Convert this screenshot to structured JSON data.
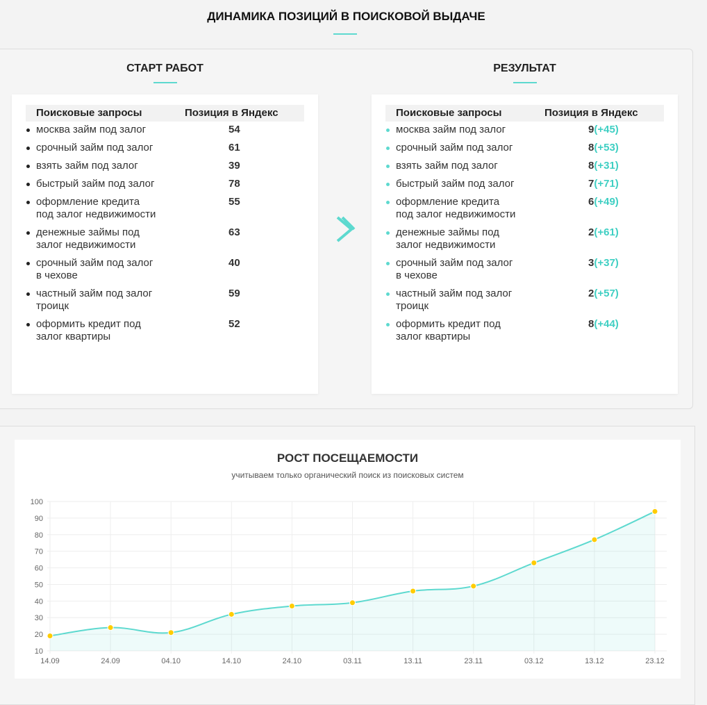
{
  "title": "ДИНАМИКА ПОЗИЦИЙ В ПОИСКОВОЙ ВЫДАЧЕ",
  "start": {
    "title": "СТАРТ РАБОТ",
    "col_query": "Поисковые запросы",
    "col_pos": "Позиция в Яндекс",
    "rows": [
      {
        "q": "москва займ под залог",
        "p": "54"
      },
      {
        "q": "срочный займ под залог",
        "p": "61"
      },
      {
        "q": "взять займ под залог",
        "p": "39"
      },
      {
        "q": "быстрый займ под залог",
        "p": "78"
      },
      {
        "q": "оформление кредита под залог недвижимости",
        "p": "55"
      },
      {
        "q": "денежные займы под залог недвижимости",
        "p": "63"
      },
      {
        "q": "срочный займ под залог в чехове",
        "p": "40"
      },
      {
        "q": "частный займ под залог троицк",
        "p": "59"
      },
      {
        "q": "оформить кредит под залог квартиры",
        "p": "52"
      }
    ]
  },
  "result": {
    "title": "РЕЗУЛЬТАТ",
    "col_query": "Поисковые запросы",
    "col_pos": "Позиция в Яндекс",
    "rows": [
      {
        "q": "москва займ под залог",
        "p": "9",
        "d": "(+45)"
      },
      {
        "q": "срочный займ под залог",
        "p": "8",
        "d": "(+53)"
      },
      {
        "q": "взять займ под залог",
        "p": "8",
        "d": "(+31)"
      },
      {
        "q": "быстрый займ под залог",
        "p": "7",
        "d": "(+71)"
      },
      {
        "q": "оформление кредита под залог недвижимости",
        "p": "6",
        "d": "(+49)"
      },
      {
        "q": "денежные займы под залог недвижимости",
        "p": "2",
        "d": "(+61)"
      },
      {
        "q": "срочный займ под залог в чехове",
        "p": "3",
        "d": "(+37)"
      },
      {
        "q": "частный займ под залог троицк",
        "p": "2",
        "d": "(+57)"
      },
      {
        "q": "оформить кредит под залог квартиры",
        "p": "8",
        "d": "(+44)"
      }
    ]
  },
  "arrow_icon": "chevron-right-icon",
  "colors": {
    "accent": "#5dd9cf",
    "point": "#ffcc00"
  },
  "chart_data": {
    "type": "area",
    "title": "РОСТ ПОСЕЩАЕМОСТИ",
    "subtitle": "учитываем только органический поиск из поисковых систем",
    "categories": [
      "14.09",
      "24.09",
      "04.10",
      "14.10",
      "24.10",
      "03.11",
      "13.11",
      "23.11",
      "03.12",
      "13.12",
      "23.12"
    ],
    "values": [
      19,
      24,
      21,
      32,
      37,
      39,
      46,
      49,
      63,
      77,
      94
    ],
    "ylim": [
      10,
      100
    ],
    "yticks": [
      10,
      20,
      30,
      40,
      50,
      60,
      70,
      80,
      90,
      100
    ],
    "grid": true
  }
}
